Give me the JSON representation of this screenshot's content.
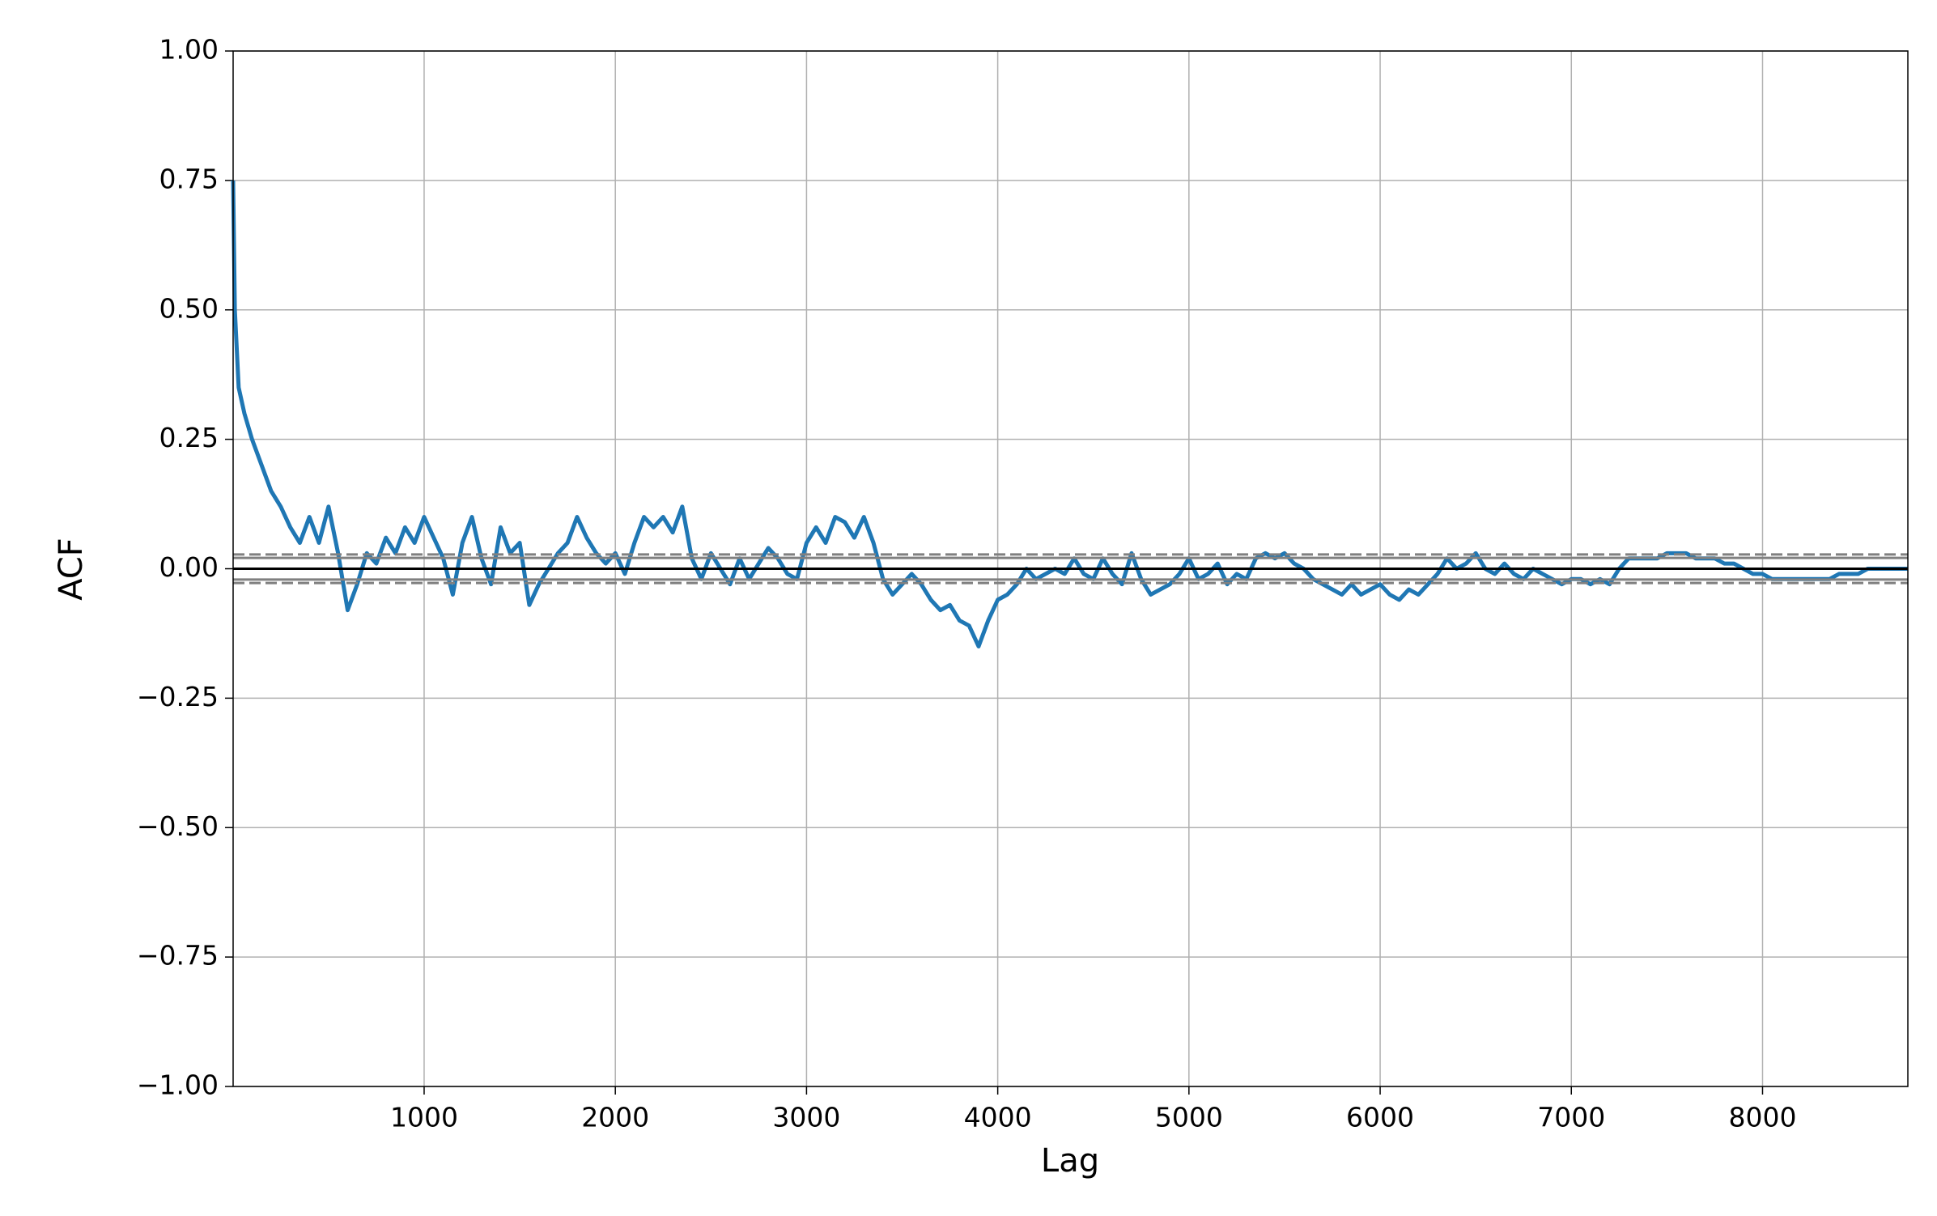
{
  "chart_data": {
    "type": "line",
    "xlabel": "Lag",
    "ylabel": "ACF",
    "x": [
      1,
      10,
      30,
      60,
      100,
      150,
      200,
      250,
      300,
      350,
      400,
      450,
      500,
      550,
      600,
      650,
      700,
      750,
      800,
      850,
      900,
      950,
      1000,
      1050,
      1100,
      1150,
      1200,
      1250,
      1300,
      1350,
      1400,
      1450,
      1500,
      1550,
      1600,
      1650,
      1700,
      1750,
      1800,
      1850,
      1900,
      1950,
      2000,
      2050,
      2100,
      2150,
      2200,
      2250,
      2300,
      2350,
      2400,
      2450,
      2500,
      2550,
      2600,
      2650,
      2700,
      2750,
      2800,
      2850,
      2900,
      2950,
      3000,
      3050,
      3100,
      3150,
      3200,
      3250,
      3300,
      3350,
      3400,
      3450,
      3500,
      3550,
      3600,
      3650,
      3700,
      3750,
      3800,
      3850,
      3900,
      3950,
      4000,
      4050,
      4100,
      4150,
      4200,
      4250,
      4300,
      4350,
      4400,
      4450,
      4500,
      4550,
      4600,
      4650,
      4700,
      4750,
      4800,
      4850,
      4900,
      4950,
      5000,
      5050,
      5100,
      5150,
      5200,
      5250,
      5300,
      5350,
      5400,
      5450,
      5500,
      5550,
      5600,
      5650,
      5700,
      5750,
      5800,
      5850,
      5900,
      5950,
      6000,
      6050,
      6100,
      6150,
      6200,
      6250,
      6300,
      6350,
      6400,
      6450,
      6500,
      6550,
      6600,
      6650,
      6700,
      6750,
      6800,
      6850,
      6900,
      6950,
      7000,
      7050,
      7100,
      7150,
      7200,
      7250,
      7300,
      7350,
      7400,
      7450,
      7500,
      7550,
      7600,
      7650,
      7700,
      7750,
      7800,
      7850,
      7900,
      7950,
      8000,
      8050,
      8100,
      8150,
      8200,
      8250,
      8300,
      8350,
      8400,
      8450,
      8500,
      8550,
      8600,
      8650,
      8700,
      8760
    ],
    "series": [
      {
        "color": "#1f77b4",
        "values": [
          0.75,
          0.5,
          0.35,
          0.3,
          0.25,
          0.2,
          0.15,
          0.12,
          0.08,
          0.05,
          0.1,
          0.05,
          0.12,
          0.03,
          -0.08,
          -0.03,
          0.03,
          0.01,
          0.06,
          0.03,
          0.08,
          0.05,
          0.1,
          0.06,
          0.02,
          -0.05,
          0.05,
          0.1,
          0.02,
          -0.03,
          0.08,
          0.03,
          0.05,
          -0.07,
          -0.03,
          0.0,
          0.03,
          0.05,
          0.1,
          0.06,
          0.03,
          0.01,
          0.03,
          -0.01,
          0.05,
          0.1,
          0.08,
          0.1,
          0.07,
          0.12,
          0.02,
          -0.02,
          0.03,
          0.0,
          -0.03,
          0.02,
          -0.02,
          0.01,
          0.04,
          0.02,
          -0.01,
          -0.02,
          0.05,
          0.08,
          0.05,
          0.1,
          0.09,
          0.06,
          0.1,
          0.05,
          -0.02,
          -0.05,
          -0.03,
          -0.01,
          -0.03,
          -0.06,
          -0.08,
          -0.07,
          -0.1,
          -0.11,
          -0.15,
          -0.1,
          -0.06,
          -0.05,
          -0.03,
          0.0,
          -0.02,
          -0.01,
          0.0,
          -0.01,
          0.02,
          -0.01,
          -0.02,
          0.02,
          -0.01,
          -0.03,
          0.03,
          -0.02,
          -0.05,
          -0.04,
          -0.03,
          -0.01,
          0.02,
          -0.02,
          -0.01,
          0.01,
          -0.03,
          -0.01,
          -0.02,
          0.02,
          0.03,
          0.02,
          0.03,
          0.01,
          0.0,
          -0.02,
          -0.03,
          -0.04,
          -0.05,
          -0.03,
          -0.05,
          -0.04,
          -0.03,
          -0.05,
          -0.06,
          -0.04,
          -0.05,
          -0.03,
          -0.01,
          0.02,
          0.0,
          0.01,
          0.03,
          0.0,
          -0.01,
          0.01,
          -0.01,
          -0.02,
          0.0,
          -0.01,
          -0.02,
          -0.03,
          -0.02,
          -0.02,
          -0.03,
          -0.02,
          -0.03,
          0.0,
          0.02,
          0.02,
          0.02,
          0.02,
          0.03,
          0.03,
          0.03,
          0.02,
          0.02,
          0.02,
          0.01,
          0.01,
          0.0,
          -0.01,
          -0.01,
          -0.02,
          -0.02,
          -0.02,
          -0.02,
          -0.02,
          -0.02,
          -0.02,
          -0.01,
          -0.01,
          -0.01,
          0.0,
          0.0,
          0.0,
          0.0,
          0.0
        ]
      }
    ],
    "hlines": [
      {
        "value": 0.0275,
        "color": "grey",
        "style": "dashed"
      },
      {
        "value": 0.0209,
        "color": "grey",
        "style": "solid"
      },
      {
        "value": 0,
        "color": "black",
        "style": "solid"
      },
      {
        "value": -0.0209,
        "color": "grey",
        "style": "solid"
      },
      {
        "value": -0.0275,
        "color": "grey",
        "style": "dashed"
      }
    ],
    "xlim": [
      1,
      8760
    ],
    "xticks": [
      1000,
      2000,
      3000,
      4000,
      5000,
      6000,
      7000,
      8000
    ],
    "ylim": [
      -1,
      1
    ],
    "yticks": [
      {
        "value": -1,
        "label": "−1.00"
      },
      {
        "value": -0.75,
        "label": "−0.75"
      },
      {
        "value": -0.5,
        "label": "−0.50"
      },
      {
        "value": -0.25,
        "label": "−0.25"
      },
      {
        "value": 0,
        "label": "0.00"
      },
      {
        "value": 0.25,
        "label": "0.25"
      },
      {
        "value": 0.5,
        "label": "0.50"
      },
      {
        "value": 0.75,
        "label": "0.75"
      },
      {
        "value": 1,
        "label": "1.00"
      }
    ],
    "grid": true
  }
}
